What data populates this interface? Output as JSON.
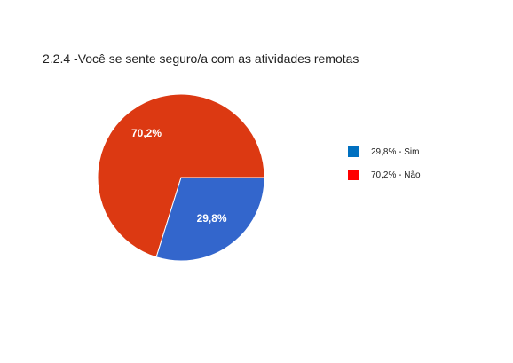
{
  "chart_data": {
    "type": "pie",
    "title": "2.2.4 -Você se sente seguro/a com as atividades remotas",
    "slices": [
      {
        "label": "70,2%",
        "value": 70.2,
        "color": "#dc3912"
      },
      {
        "label": "29,8%",
        "value": 29.8,
        "color": "#3366cc"
      }
    ],
    "legend": {
      "placement": "right",
      "entries": [
        {
          "text": "29,8% - Sim",
          "color": "#0070c0"
        },
        {
          "text": "70,2% - Não",
          "color": "#ff0000"
        }
      ]
    }
  }
}
